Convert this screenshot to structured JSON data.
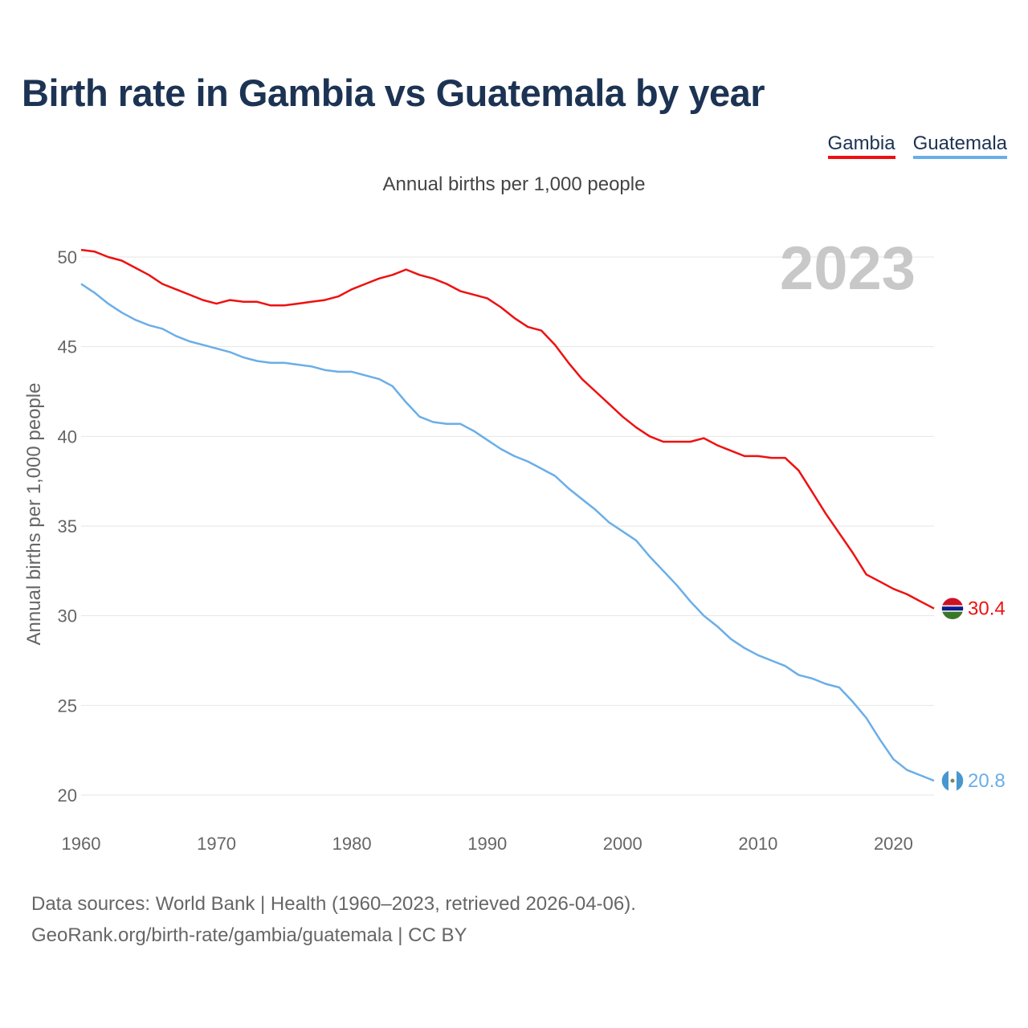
{
  "title": "Birth rate in Gambia vs Guatemala by year",
  "subtitle": "Annual births per 1,000 people",
  "year_label": "2023",
  "source_line1": "Data sources: World Bank | Health (1960–2023, retrieved 2026-04-06).",
  "source_line2": "GeoRank.org/birth-rate/gambia/guatemala | CC BY",
  "chart_data": {
    "type": "line",
    "title": "Birth rate in Gambia vs Guatemala by year",
    "xlabel": "",
    "ylabel": "Annual births per 1,000 people",
    "xlim": [
      1960,
      2023
    ],
    "ylim": [
      20,
      51
    ],
    "xticks": [
      1960,
      1970,
      1980,
      1990,
      2000,
      2010,
      2020
    ],
    "yticks": [
      20,
      25,
      30,
      35,
      40,
      45,
      50
    ],
    "x": [
      1960,
      1961,
      1962,
      1963,
      1964,
      1965,
      1966,
      1967,
      1968,
      1969,
      1970,
      1971,
      1972,
      1973,
      1974,
      1975,
      1976,
      1977,
      1978,
      1979,
      1980,
      1981,
      1982,
      1983,
      1984,
      1985,
      1986,
      1987,
      1988,
      1989,
      1990,
      1991,
      1992,
      1993,
      1994,
      1995,
      1996,
      1997,
      1998,
      1999,
      2000,
      2001,
      2002,
      2003,
      2004,
      2005,
      2006,
      2007,
      2008,
      2009,
      2010,
      2011,
      2012,
      2013,
      2014,
      2015,
      2016,
      2017,
      2018,
      2019,
      2020,
      2021,
      2022,
      2023
    ],
    "series": [
      {
        "name": "Gambia",
        "color": "#ee1111",
        "end_value_label": "30.4",
        "values": [
          50.4,
          50.3,
          50.0,
          49.8,
          49.4,
          49.0,
          48.5,
          48.2,
          47.9,
          47.6,
          47.4,
          47.6,
          47.5,
          47.5,
          47.3,
          47.3,
          47.4,
          47.5,
          47.6,
          47.8,
          48.2,
          48.5,
          48.8,
          49.0,
          49.3,
          49.0,
          48.8,
          48.5,
          48.1,
          47.9,
          47.7,
          47.2,
          46.6,
          46.1,
          45.9,
          45.1,
          44.1,
          43.2,
          42.5,
          41.8,
          41.1,
          40.5,
          40.0,
          39.7,
          39.7,
          39.7,
          39.9,
          39.5,
          39.2,
          38.9,
          38.9,
          38.8,
          38.8,
          38.1,
          36.9,
          35.7,
          34.6,
          33.5,
          32.3,
          31.9,
          31.5,
          31.2,
          30.8,
          30.4
        ]
      },
      {
        "name": "Guatemala",
        "color": "#6aaee8",
        "end_value_label": "20.8",
        "values": [
          48.5,
          48.0,
          47.4,
          46.9,
          46.5,
          46.2,
          46.0,
          45.6,
          45.3,
          45.1,
          44.9,
          44.7,
          44.4,
          44.2,
          44.1,
          44.1,
          44.0,
          43.9,
          43.7,
          43.6,
          43.6,
          43.4,
          43.2,
          42.8,
          41.9,
          41.1,
          40.8,
          40.7,
          40.7,
          40.3,
          39.8,
          39.3,
          38.9,
          38.6,
          38.2,
          37.8,
          37.1,
          36.5,
          35.9,
          35.2,
          34.7,
          34.2,
          33.3,
          32.5,
          31.7,
          30.8,
          30.0,
          29.4,
          28.7,
          28.2,
          27.8,
          27.5,
          27.2,
          26.7,
          26.5,
          26.2,
          26.0,
          25.2,
          24.3,
          23.1,
          22.0,
          21.4,
          21.1,
          20.8
        ]
      }
    ]
  }
}
